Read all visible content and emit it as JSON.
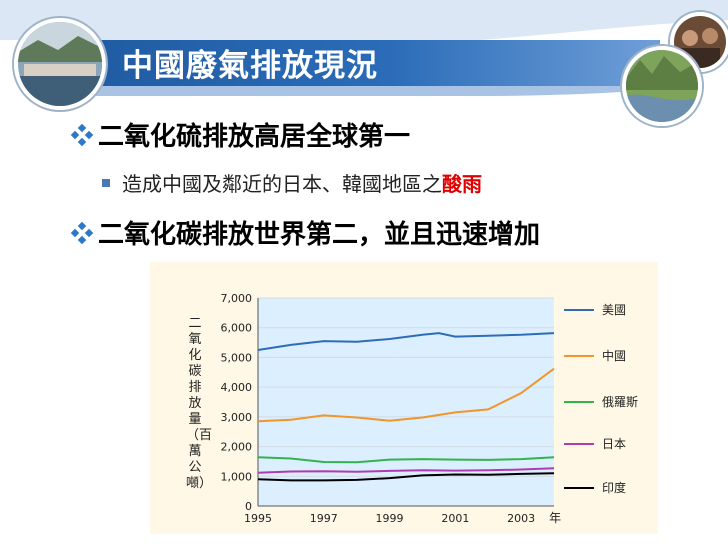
{
  "slide": {
    "title": "中國廢氣排放現況",
    "bullets": [
      {
        "level": 1,
        "text": "二氧化硫排放高居全球第一"
      },
      {
        "level": 2,
        "text": "造成中國及鄰近的日本、韓國地區之",
        "highlight": "酸雨"
      },
      {
        "level": 1,
        "text": "二氧化碳排放世界第二，並且迅速增加"
      }
    ]
  },
  "colors": {
    "header_blue": "#1f5aa0",
    "header_light": "#5b8fd0",
    "bullet_blue": "#2e78c7",
    "acid_red": "#e00000"
  },
  "chart_data": {
    "type": "line",
    "ylabel": "二氧化碳排放量（百萬公噸）",
    "xlabel": "",
    "x_unit_label": "年",
    "ylim": [
      0,
      7000
    ],
    "xlim": [
      1995,
      2004
    ],
    "y_ticks": [
      "0",
      "1,000",
      "2,000",
      "3,000",
      "4,000",
      "5,000",
      "6,000",
      "7,000"
    ],
    "x_ticks": [
      "1995",
      "1997",
      "1999",
      "2001",
      "2003"
    ],
    "series": [
      {
        "name": "美國",
        "color": "#2e6db5",
        "x": [
          1995,
          1996,
          1997,
          1998,
          1999,
          2000,
          2000.5,
          2001,
          2002,
          2003,
          2004
        ],
        "values": [
          5250,
          5420,
          5550,
          5530,
          5620,
          5760,
          5820,
          5700,
          5730,
          5760,
          5820
        ]
      },
      {
        "name": "中國",
        "color": "#f0962a",
        "x": [
          1995,
          1996,
          1997,
          1998,
          1999,
          2000,
          2001,
          2002,
          2003,
          2004
        ],
        "values": [
          2850,
          2900,
          3050,
          2980,
          2870,
          2980,
          3150,
          3250,
          3800,
          4620
        ]
      },
      {
        "name": "俄羅斯",
        "color": "#31b54a",
        "x": [
          1995,
          1996,
          1997,
          1998,
          1999,
          2000,
          2001,
          2002,
          2003,
          2004
        ],
        "values": [
          1640,
          1600,
          1480,
          1470,
          1560,
          1580,
          1560,
          1550,
          1580,
          1640
        ]
      },
      {
        "name": "日本",
        "color": "#b03ab0",
        "x": [
          1995,
          1996,
          1997,
          1998,
          1999,
          2000,
          2001,
          2002,
          2003,
          2004
        ],
        "values": [
          1120,
          1160,
          1170,
          1150,
          1180,
          1200,
          1190,
          1200,
          1230,
          1270
        ]
      },
      {
        "name": "印度",
        "color": "#000000",
        "x": [
          1995,
          1996,
          1997,
          1998,
          1999,
          2000,
          2001,
          2002,
          2003,
          2004
        ],
        "values": [
          900,
          860,
          860,
          880,
          940,
          1030,
          1060,
          1050,
          1080,
          1100
        ]
      }
    ]
  }
}
